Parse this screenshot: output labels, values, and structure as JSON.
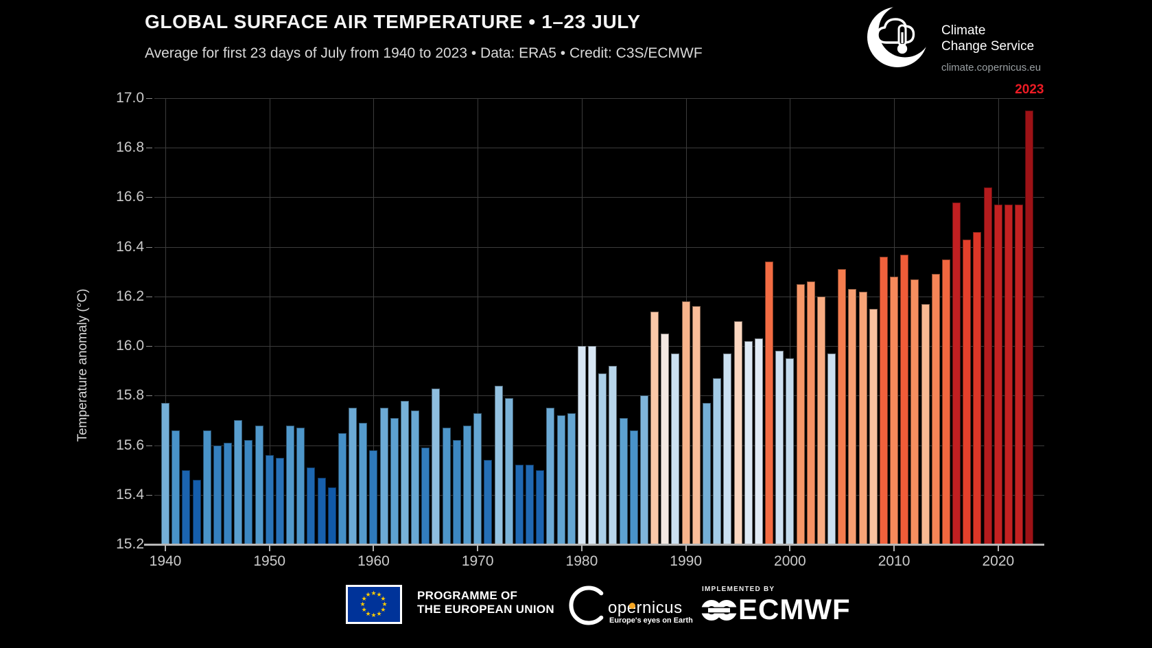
{
  "header": {
    "title": "GLOBAL SURFACE AIR TEMPERATURE • 1–23 JULY",
    "subtitle": "Average for first 23 days of July from 1940 to 2023 • Data: ERA5 • Credit: C3S/ECMWF"
  },
  "branding": {
    "service_name_line1": "Climate",
    "service_name_line2": "Change Service",
    "website": "climate.copernicus.eu"
  },
  "chart_data": {
    "type": "bar",
    "title": "GLOBAL SURFACE AIR TEMPERATURE • 1–23 JULY",
    "xlabel": "",
    "ylabel": "Temperature anomaly (°C)",
    "ylim": [
      15.2,
      17.0
    ],
    "yticks": [
      15.2,
      15.4,
      15.6,
      15.8,
      16.0,
      16.2,
      16.4,
      16.6,
      16.8,
      17.0
    ],
    "xticks": [
      1940,
      1950,
      1960,
      1970,
      1980,
      1990,
      2000,
      2010,
      2020
    ],
    "grid": true,
    "legend": "none",
    "annotation": {
      "text": "2023",
      "color": "#ee1c25"
    },
    "x": [
      1940,
      1941,
      1942,
      1943,
      1944,
      1945,
      1946,
      1947,
      1948,
      1949,
      1950,
      1951,
      1952,
      1953,
      1954,
      1955,
      1956,
      1957,
      1958,
      1959,
      1960,
      1961,
      1962,
      1963,
      1964,
      1965,
      1966,
      1967,
      1968,
      1969,
      1970,
      1971,
      1972,
      1973,
      1974,
      1975,
      1976,
      1977,
      1978,
      1979,
      1980,
      1981,
      1982,
      1983,
      1984,
      1985,
      1986,
      1987,
      1988,
      1989,
      1990,
      1991,
      1992,
      1993,
      1994,
      1995,
      1996,
      1997,
      1998,
      1999,
      2000,
      2001,
      2002,
      2003,
      2004,
      2005,
      2006,
      2007,
      2008,
      2009,
      2010,
      2011,
      2012,
      2013,
      2014,
      2015,
      2016,
      2017,
      2018,
      2019,
      2020,
      2021,
      2022,
      2023
    ],
    "values": [
      15.77,
      15.66,
      15.5,
      15.46,
      15.66,
      15.6,
      15.61,
      15.7,
      15.62,
      15.68,
      15.56,
      15.55,
      15.68,
      15.67,
      15.51,
      15.47,
      15.43,
      15.65,
      15.75,
      15.69,
      15.58,
      15.75,
      15.71,
      15.78,
      15.74,
      15.59,
      15.83,
      15.67,
      15.62,
      15.68,
      15.73,
      15.54,
      15.84,
      15.79,
      15.52,
      15.52,
      15.5,
      15.75,
      15.72,
      15.73,
      16.0,
      16.0,
      15.89,
      15.92,
      15.71,
      15.66,
      15.8,
      16.14,
      16.05,
      15.97,
      16.18,
      16.16,
      15.77,
      15.87,
      15.97,
      16.1,
      16.02,
      16.03,
      16.34,
      15.98,
      15.95,
      16.25,
      16.26,
      16.2,
      15.97,
      16.31,
      16.23,
      16.22,
      16.15,
      16.36,
      16.28,
      16.37,
      16.27,
      16.17,
      16.29,
      16.35,
      16.58,
      16.43,
      16.46,
      16.64,
      16.57,
      16.57,
      16.57,
      16.95
    ],
    "colormap_stops": [
      [
        15.4,
        "#0d56a6"
      ],
      [
        15.5,
        "#1b64b0"
      ],
      [
        15.58,
        "#2f7abc"
      ],
      [
        15.65,
        "#4590c7"
      ],
      [
        15.72,
        "#61a4d2"
      ],
      [
        15.8,
        "#7fb5da"
      ],
      [
        15.87,
        "#a3cbe6"
      ],
      [
        15.93,
        "#bcd8ec"
      ],
      [
        15.98,
        "#cfe2f2"
      ],
      [
        16.03,
        "#e2ecf6"
      ],
      [
        16.06,
        "#fbe6d8"
      ],
      [
        16.12,
        "#fbd0b4"
      ],
      [
        16.18,
        "#f8b48c"
      ],
      [
        16.25,
        "#f79768"
      ],
      [
        16.31,
        "#f57c4e"
      ],
      [
        16.37,
        "#f05c38"
      ],
      [
        16.44,
        "#e23b29"
      ],
      [
        16.5,
        "#d22d24"
      ],
      [
        16.58,
        "#c11f21"
      ],
      [
        16.66,
        "#b01a1c"
      ],
      [
        16.95,
        "#9d1216"
      ]
    ],
    "axis_colors": {
      "grid": "#3c3c3c",
      "baseline": "#b8b8b8",
      "tick_label": "#cbcbcb"
    }
  },
  "footer": {
    "eu_label_line1": "PROGRAMME OF",
    "eu_label_line2": "THE EUROPEAN UNION",
    "eu_flag": {
      "blue": "#003399",
      "star_color": "#ffcc00",
      "star_count": 12
    },
    "copernicus_name": "opernicus",
    "copernicus_tagline": "Europe's eyes on Earth",
    "implemented_by": "IMPLEMENTED BY",
    "ecmwf_name": "ECMWF"
  }
}
